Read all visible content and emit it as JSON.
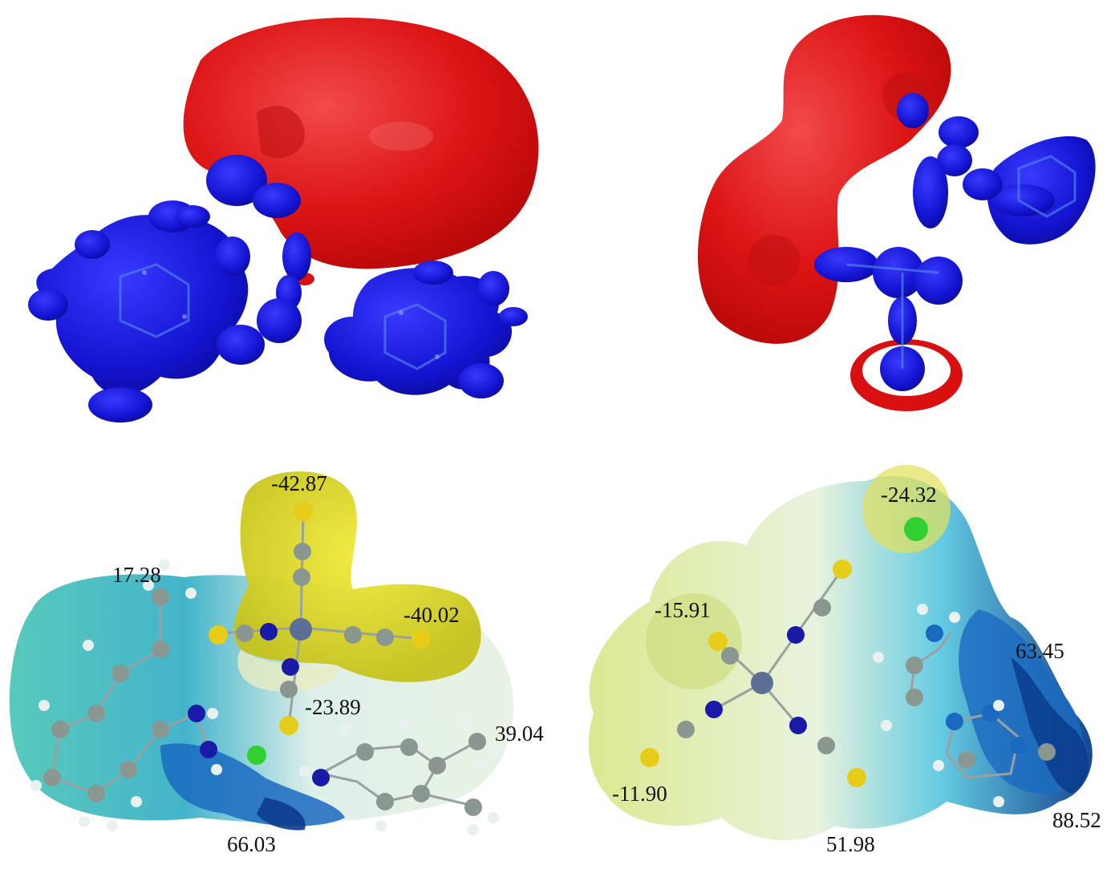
{
  "figure": {
    "panels": [
      {
        "id": "top-left",
        "kind": "orbital-isosurface"
      },
      {
        "id": "top-right",
        "kind": "orbital-isosurface"
      },
      {
        "id": "bottom-left",
        "kind": "electrostatic-potential-map"
      },
      {
        "id": "bottom-right",
        "kind": "electrostatic-potential-map"
      }
    ],
    "colors": {
      "lobe_positive": "#e01010",
      "lobe_negative": "#1a1acc",
      "esp_negative": "#e6d81e",
      "esp_neutral": "#e4f3e0",
      "esp_positive": "#0a4fa8",
      "atom_carbon": "#8a9690",
      "atom_nitrogen": "#1a1aa8",
      "atom_sulfur": "#e8c81a",
      "atom_hydrogen": "#e8f0f0",
      "atom_chlorine": "#2fd02f",
      "atom_metal": "#5a6e96"
    },
    "bottom_left": {
      "labels": [
        "-42.87",
        "17.28",
        "-40.02",
        "-23.89",
        "39.04",
        "66.03"
      ]
    },
    "bottom_right": {
      "labels": [
        "-24.32",
        "-15.91",
        "63.45",
        "-11.90",
        "51.98",
        "88.52"
      ]
    }
  }
}
